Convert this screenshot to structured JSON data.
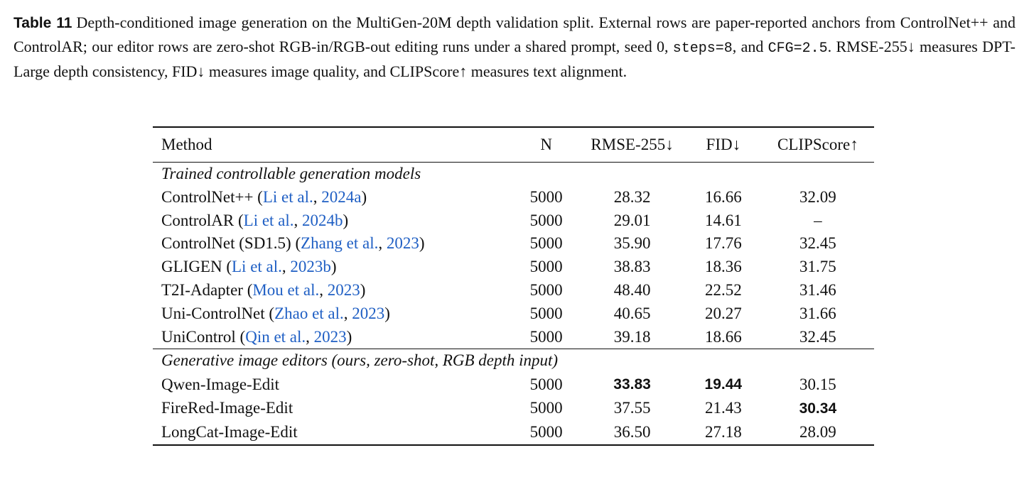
{
  "caption": {
    "label": "Table 11",
    "part1": "Depth-conditioned image generation on the MultiGen-20M depth validation split. External rows are paper-reported anchors from ControlNet++ and ControlAR; our editor rows are zero-shot RGB-in/RGB-out editing runs under a shared prompt, seed 0, ",
    "steps": "steps=8",
    "part2": ", and ",
    "cfg": "CFG=2.5",
    "part3": ". RMSE-255↓ measures DPT-Large depth consistency, FID↓ measures image quality, and CLIPScore↑ measures text alignment."
  },
  "table": {
    "headers": {
      "method": "Method",
      "n": "N",
      "rmse": "RMSE-255↓",
      "fid": "FID↓",
      "clip": "CLIPScore↑"
    },
    "section1": "Trained controllable generation models",
    "rows1": [
      {
        "name": "ControlNet++ (",
        "cite_author": "Li et al.",
        "cite_sep": ", ",
        "cite_year": "2024a",
        "close": ")",
        "n": "5000",
        "rmse": "28.32",
        "fid": "16.66",
        "clip": "32.09"
      },
      {
        "name": "ControlAR (",
        "cite_author": "Li et al.",
        "cite_sep": ", ",
        "cite_year": "2024b",
        "close": ")",
        "n": "5000",
        "rmse": "29.01",
        "fid": "14.61",
        "clip": "–"
      },
      {
        "name": "ControlNet (SD1.5) (",
        "cite_author": "Zhang et al.",
        "cite_sep": ", ",
        "cite_year": "2023",
        "close": ")",
        "n": "5000",
        "rmse": "35.90",
        "fid": "17.76",
        "clip": "32.45"
      },
      {
        "name": "GLIGEN (",
        "cite_author": "Li et al.",
        "cite_sep": ", ",
        "cite_year": "2023b",
        "close": ")",
        "n": "5000",
        "rmse": "38.83",
        "fid": "18.36",
        "clip": "31.75"
      },
      {
        "name": "T2I-Adapter (",
        "cite_author": "Mou et al.",
        "cite_sep": ", ",
        "cite_year": "2023",
        "close": ")",
        "n": "5000",
        "rmse": "48.40",
        "fid": "22.52",
        "clip": "31.46"
      },
      {
        "name": "Uni-ControlNet (",
        "cite_author": "Zhao et al.",
        "cite_sep": ", ",
        "cite_year": "2023",
        "close": ")",
        "n": "5000",
        "rmse": "40.65",
        "fid": "20.27",
        "clip": "31.66"
      },
      {
        "name": "UniControl (",
        "cite_author": "Qin et al.",
        "cite_sep": ", ",
        "cite_year": "2023",
        "close": ")",
        "n": "5000",
        "rmse": "39.18",
        "fid": "18.66",
        "clip": "32.45"
      }
    ],
    "section2": "Generative image editors (ours, zero-shot, RGB depth input)",
    "rows2": [
      {
        "name": "Qwen-Image-Edit",
        "n": "5000",
        "rmse": "33.83",
        "fid": "19.44",
        "clip": "30.15"
      },
      {
        "name": "FireRed-Image-Edit",
        "n": "5000",
        "rmse": "37.55",
        "fid": "21.43",
        "clip": "30.34"
      },
      {
        "name": "LongCat-Image-Edit",
        "n": "5000",
        "rmse": "36.50",
        "fid": "27.18",
        "clip": "28.09"
      }
    ]
  }
}
